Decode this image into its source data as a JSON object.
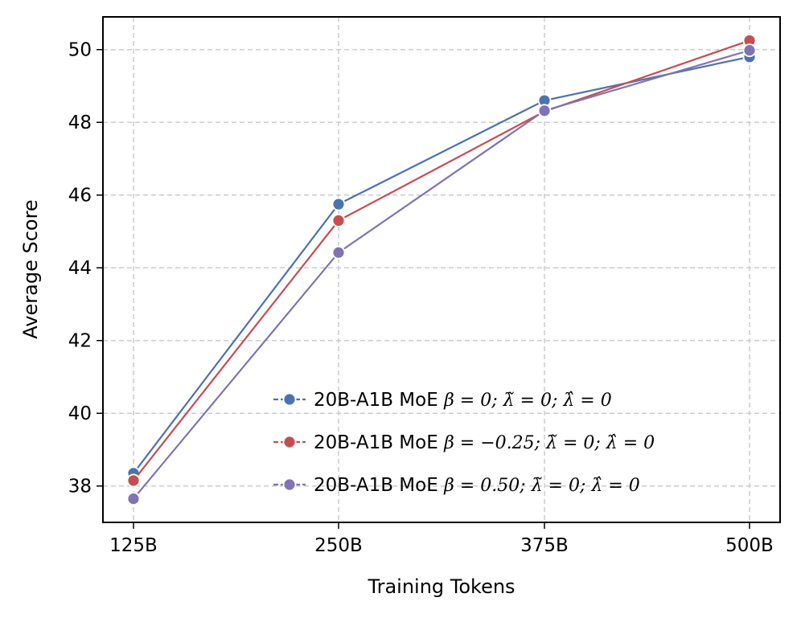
{
  "chart_data": {
    "type": "line",
    "x": [
      "125B",
      "250B",
      "375B",
      "500B"
    ],
    "xlabel": "Training Tokens",
    "ylabel": "Average Score",
    "ylim": [
      37.0,
      50.9
    ],
    "yticks": [
      "38",
      "40",
      "42",
      "44",
      "46",
      "48",
      "50"
    ],
    "grid": true,
    "grid_style": "dashed",
    "legend_position": "lower-right",
    "series": [
      {
        "name": "20B-A1B MoE",
        "name_math": "β = 0;  λ̃ = 0;  λ̂ = 0",
        "color": "#4C72B0",
        "values": [
          38.35,
          45.75,
          48.6,
          49.8
        ]
      },
      {
        "name": "20B-A1B MoE",
        "name_math": "β = −0.25;  λ̃ = 0;  λ̂ = 0",
        "color": "#C44E52",
        "values": [
          38.15,
          45.3,
          48.3,
          50.25
        ]
      },
      {
        "name": "20B-A1B MoE",
        "name_math": "β = 0.50;  λ̃ = 0;  λ̂ = 0",
        "color": "#8172B3",
        "values": [
          37.65,
          44.42,
          48.32,
          49.98
        ]
      }
    ]
  }
}
